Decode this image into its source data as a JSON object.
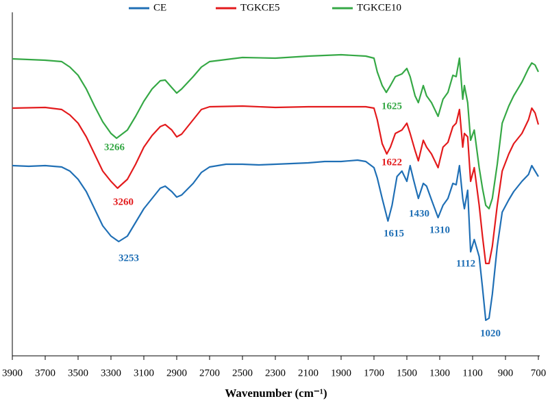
{
  "chart_data": {
    "type": "line",
    "x_label": "Wavenumber (cm⁻¹)",
    "xlim": [
      3900,
      700
    ],
    "ylim": [
      0,
      100
    ],
    "xticks": [
      3900,
      3700,
      3500,
      3300,
      3100,
      2900,
      2700,
      2500,
      2300,
      2100,
      1900,
      1700,
      1500,
      1300,
      1100,
      900,
      700
    ],
    "series": [
      {
        "name": "CE",
        "color": "#1f6fb5",
        "x": [
          3900,
          3800,
          3700,
          3600,
          3550,
          3500,
          3450,
          3400,
          3350,
          3300,
          3253,
          3200,
          3150,
          3100,
          3050,
          3000,
          2970,
          2930,
          2900,
          2870,
          2800,
          2750,
          2700,
          2600,
          2500,
          2400,
          2300,
          2200,
          2100,
          2000,
          1900,
          1800,
          1750,
          1700,
          1680,
          1650,
          1615,
          1590,
          1560,
          1530,
          1500,
          1480,
          1460,
          1430,
          1400,
          1380,
          1350,
          1310,
          1280,
          1250,
          1220,
          1200,
          1180,
          1160,
          1150,
          1130,
          1112,
          1090,
          1060,
          1040,
          1020,
          1000,
          980,
          950,
          920,
          880,
          850,
          800,
          760,
          740,
          720,
          700
        ],
        "values": [
          55.6,
          55.4,
          55.6,
          55.2,
          54,
          51.6,
          48,
          43,
          38,
          35,
          33.4,
          35,
          39,
          43,
          46,
          49,
          49.6,
          48,
          46.4,
          47,
          50.4,
          53.6,
          55.2,
          56,
          56,
          55.8,
          56,
          56.2,
          56.4,
          56.8,
          56.8,
          57.2,
          56.8,
          55,
          52,
          46,
          39.4,
          44,
          52.4,
          54,
          51,
          55.6,
          51.6,
          46,
          50.4,
          49.6,
          45.6,
          40.4,
          44,
          46,
          50.4,
          50,
          55.6,
          46,
          43,
          48.4,
          30.4,
          34,
          29,
          20,
          10.4,
          11,
          18,
          32,
          42,
          45.6,
          48,
          51,
          53,
          55.6,
          54,
          52.4
        ]
      },
      {
        "name": "TGKCE5",
        "color": "#e31a1c",
        "x": [
          3900,
          3700,
          3600,
          3550,
          3500,
          3450,
          3400,
          3350,
          3300,
          3260,
          3200,
          3150,
          3100,
          3050,
          3000,
          2970,
          2930,
          2900,
          2870,
          2800,
          2750,
          2700,
          2500,
          2300,
          2100,
          1900,
          1750,
          1700,
          1680,
          1650,
          1622,
          1600,
          1570,
          1530,
          1500,
          1480,
          1450,
          1430,
          1400,
          1380,
          1350,
          1310,
          1280,
          1250,
          1220,
          1200,
          1180,
          1160,
          1150,
          1130,
          1112,
          1090,
          1060,
          1040,
          1020,
          1000,
          980,
          950,
          920,
          880,
          850,
          800,
          760,
          740,
          720,
          700
        ],
        "values": [
          72.4,
          72.6,
          72,
          70.4,
          68,
          64,
          59,
          54,
          51,
          49,
          51.6,
          56,
          61,
          64.4,
          67,
          67.6,
          66,
          64,
          64.8,
          69,
          72,
          72.8,
          73,
          72.6,
          72.8,
          72.8,
          72.8,
          72.4,
          69,
          62,
          59,
          61,
          65,
          66,
          68,
          65,
          60,
          57,
          63,
          61,
          59,
          55,
          61,
          62.4,
          67,
          68,
          72,
          61,
          65,
          64,
          51,
          55,
          44,
          35,
          27,
          27,
          32,
          44,
          54,
          59,
          62,
          65,
          69,
          72.4,
          71,
          67.6
        ]
      },
      {
        "name": "TGKCE10",
        "color": "#35a845",
        "x": [
          3900,
          3700,
          3600,
          3550,
          3500,
          3450,
          3400,
          3350,
          3300,
          3266,
          3200,
          3150,
          3100,
          3050,
          3000,
          2970,
          2930,
          2900,
          2870,
          2800,
          2750,
          2700,
          2500,
          2300,
          2100,
          1900,
          1750,
          1700,
          1680,
          1650,
          1625,
          1600,
          1570,
          1530,
          1500,
          1480,
          1450,
          1430,
          1400,
          1380,
          1350,
          1310,
          1280,
          1250,
          1220,
          1200,
          1180,
          1160,
          1150,
          1130,
          1112,
          1090,
          1060,
          1040,
          1020,
          1000,
          980,
          950,
          920,
          880,
          850,
          800,
          760,
          740,
          720,
          700
        ],
        "values": [
          86.8,
          86.4,
          86,
          84.4,
          82,
          78,
          73,
          68.4,
          65,
          63.6,
          66,
          70,
          74.4,
          78,
          80.4,
          80.6,
          78.4,
          76.8,
          78,
          81.6,
          84.4,
          86,
          87.2,
          87,
          87.6,
          88,
          87.6,
          87,
          83,
          79,
          77,
          79,
          81.6,
          82.4,
          84,
          81.6,
          76,
          74,
          79,
          76,
          74,
          70,
          75,
          77,
          82,
          81.6,
          87,
          75,
          79,
          74,
          63,
          66,
          55,
          49,
          44,
          43,
          46,
          56,
          68,
          73,
          76,
          80,
          84,
          85.6,
          85,
          83
        ]
      }
    ],
    "annotations": [
      {
        "text": "3266",
        "color": "#35a845"
      },
      {
        "text": "3260",
        "color": "#e31a1c"
      },
      {
        "text": "3253",
        "color": "#1f6fb5"
      },
      {
        "text": "1625",
        "color": "#35a845"
      },
      {
        "text": "1622",
        "color": "#e31a1c"
      },
      {
        "text": "1615",
        "color": "#1f6fb5"
      },
      {
        "text": "1430",
        "color": "#1f6fb5"
      },
      {
        "text": "1310",
        "color": "#1f6fb5"
      },
      {
        "text": "1112",
        "color": "#1f6fb5"
      },
      {
        "text": "1020",
        "color": "#1f6fb5"
      }
    ]
  }
}
